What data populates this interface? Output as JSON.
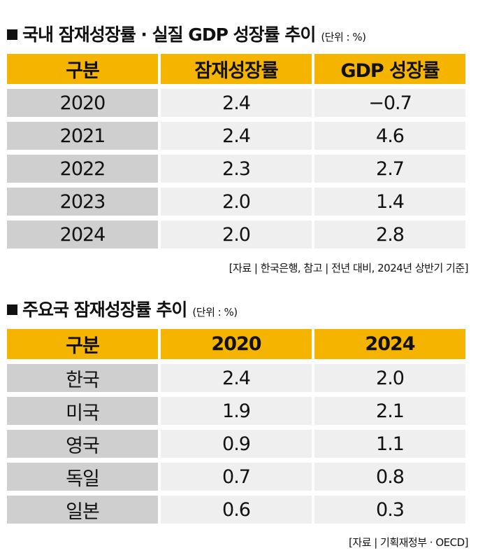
{
  "table1": {
    "title": "국내 잠재성장률 · 실질 GDP 성장률 추이",
    "unit": "(단위 : %)",
    "headers": [
      "구분",
      "잠재성장률",
      "GDP 성장률"
    ],
    "rows": [
      [
        "2020",
        "2.4",
        "−0.7"
      ],
      [
        "2021",
        "2.4",
        "4.6"
      ],
      [
        "2022",
        "2.3",
        "2.7"
      ],
      [
        "2023",
        "2.0",
        "1.4"
      ],
      [
        "2024",
        "2.0",
        "2.8"
      ]
    ],
    "source": "[자료 | 한국은행, 참고 | 전년 대비, 2024년 상반기 기준]"
  },
  "table2": {
    "title": "주요국 잠재성장률 추이",
    "unit": "(단위 : %)",
    "headers": [
      "구분",
      "2020",
      "2024"
    ],
    "rows": [
      [
        "한국",
        "2.4",
        "2.0"
      ],
      [
        "미국",
        "1.9",
        "2.1"
      ],
      [
        "영국",
        "0.9",
        "1.1"
      ],
      [
        "독일",
        "0.7",
        "0.8"
      ],
      [
        "일본",
        "0.6",
        "0.3"
      ]
    ],
    "source": "[자료 | 기획재정부 · OECD]"
  }
}
